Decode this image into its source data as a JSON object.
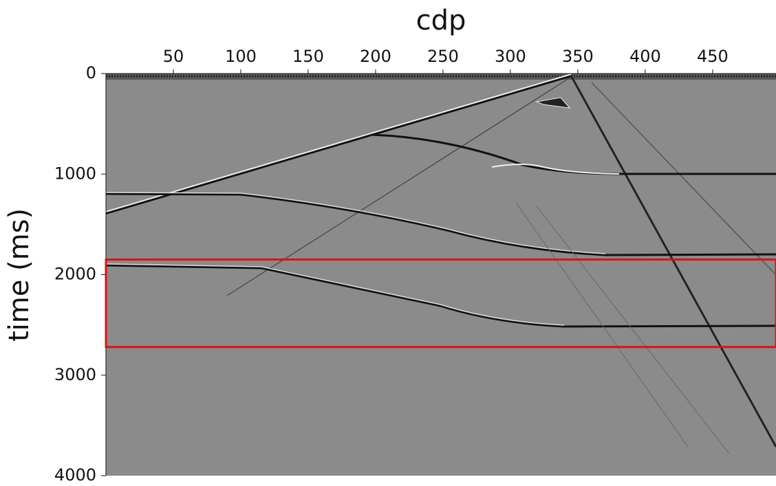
{
  "chart_data": {
    "type": "image",
    "title": "cdp",
    "y_label": "time (ms)",
    "xlim": [
      0,
      497
    ],
    "xticks": [
      50,
      100,
      150,
      200,
      250,
      300,
      350,
      400,
      450
    ],
    "ylim": [
      0,
      4000
    ],
    "yticks": [
      0,
      1000,
      2000,
      3000,
      4000
    ],
    "highlight": {
      "x": [
        0,
        497
      ],
      "y": [
        1850,
        2720
      ],
      "color": "#e01010"
    }
  }
}
